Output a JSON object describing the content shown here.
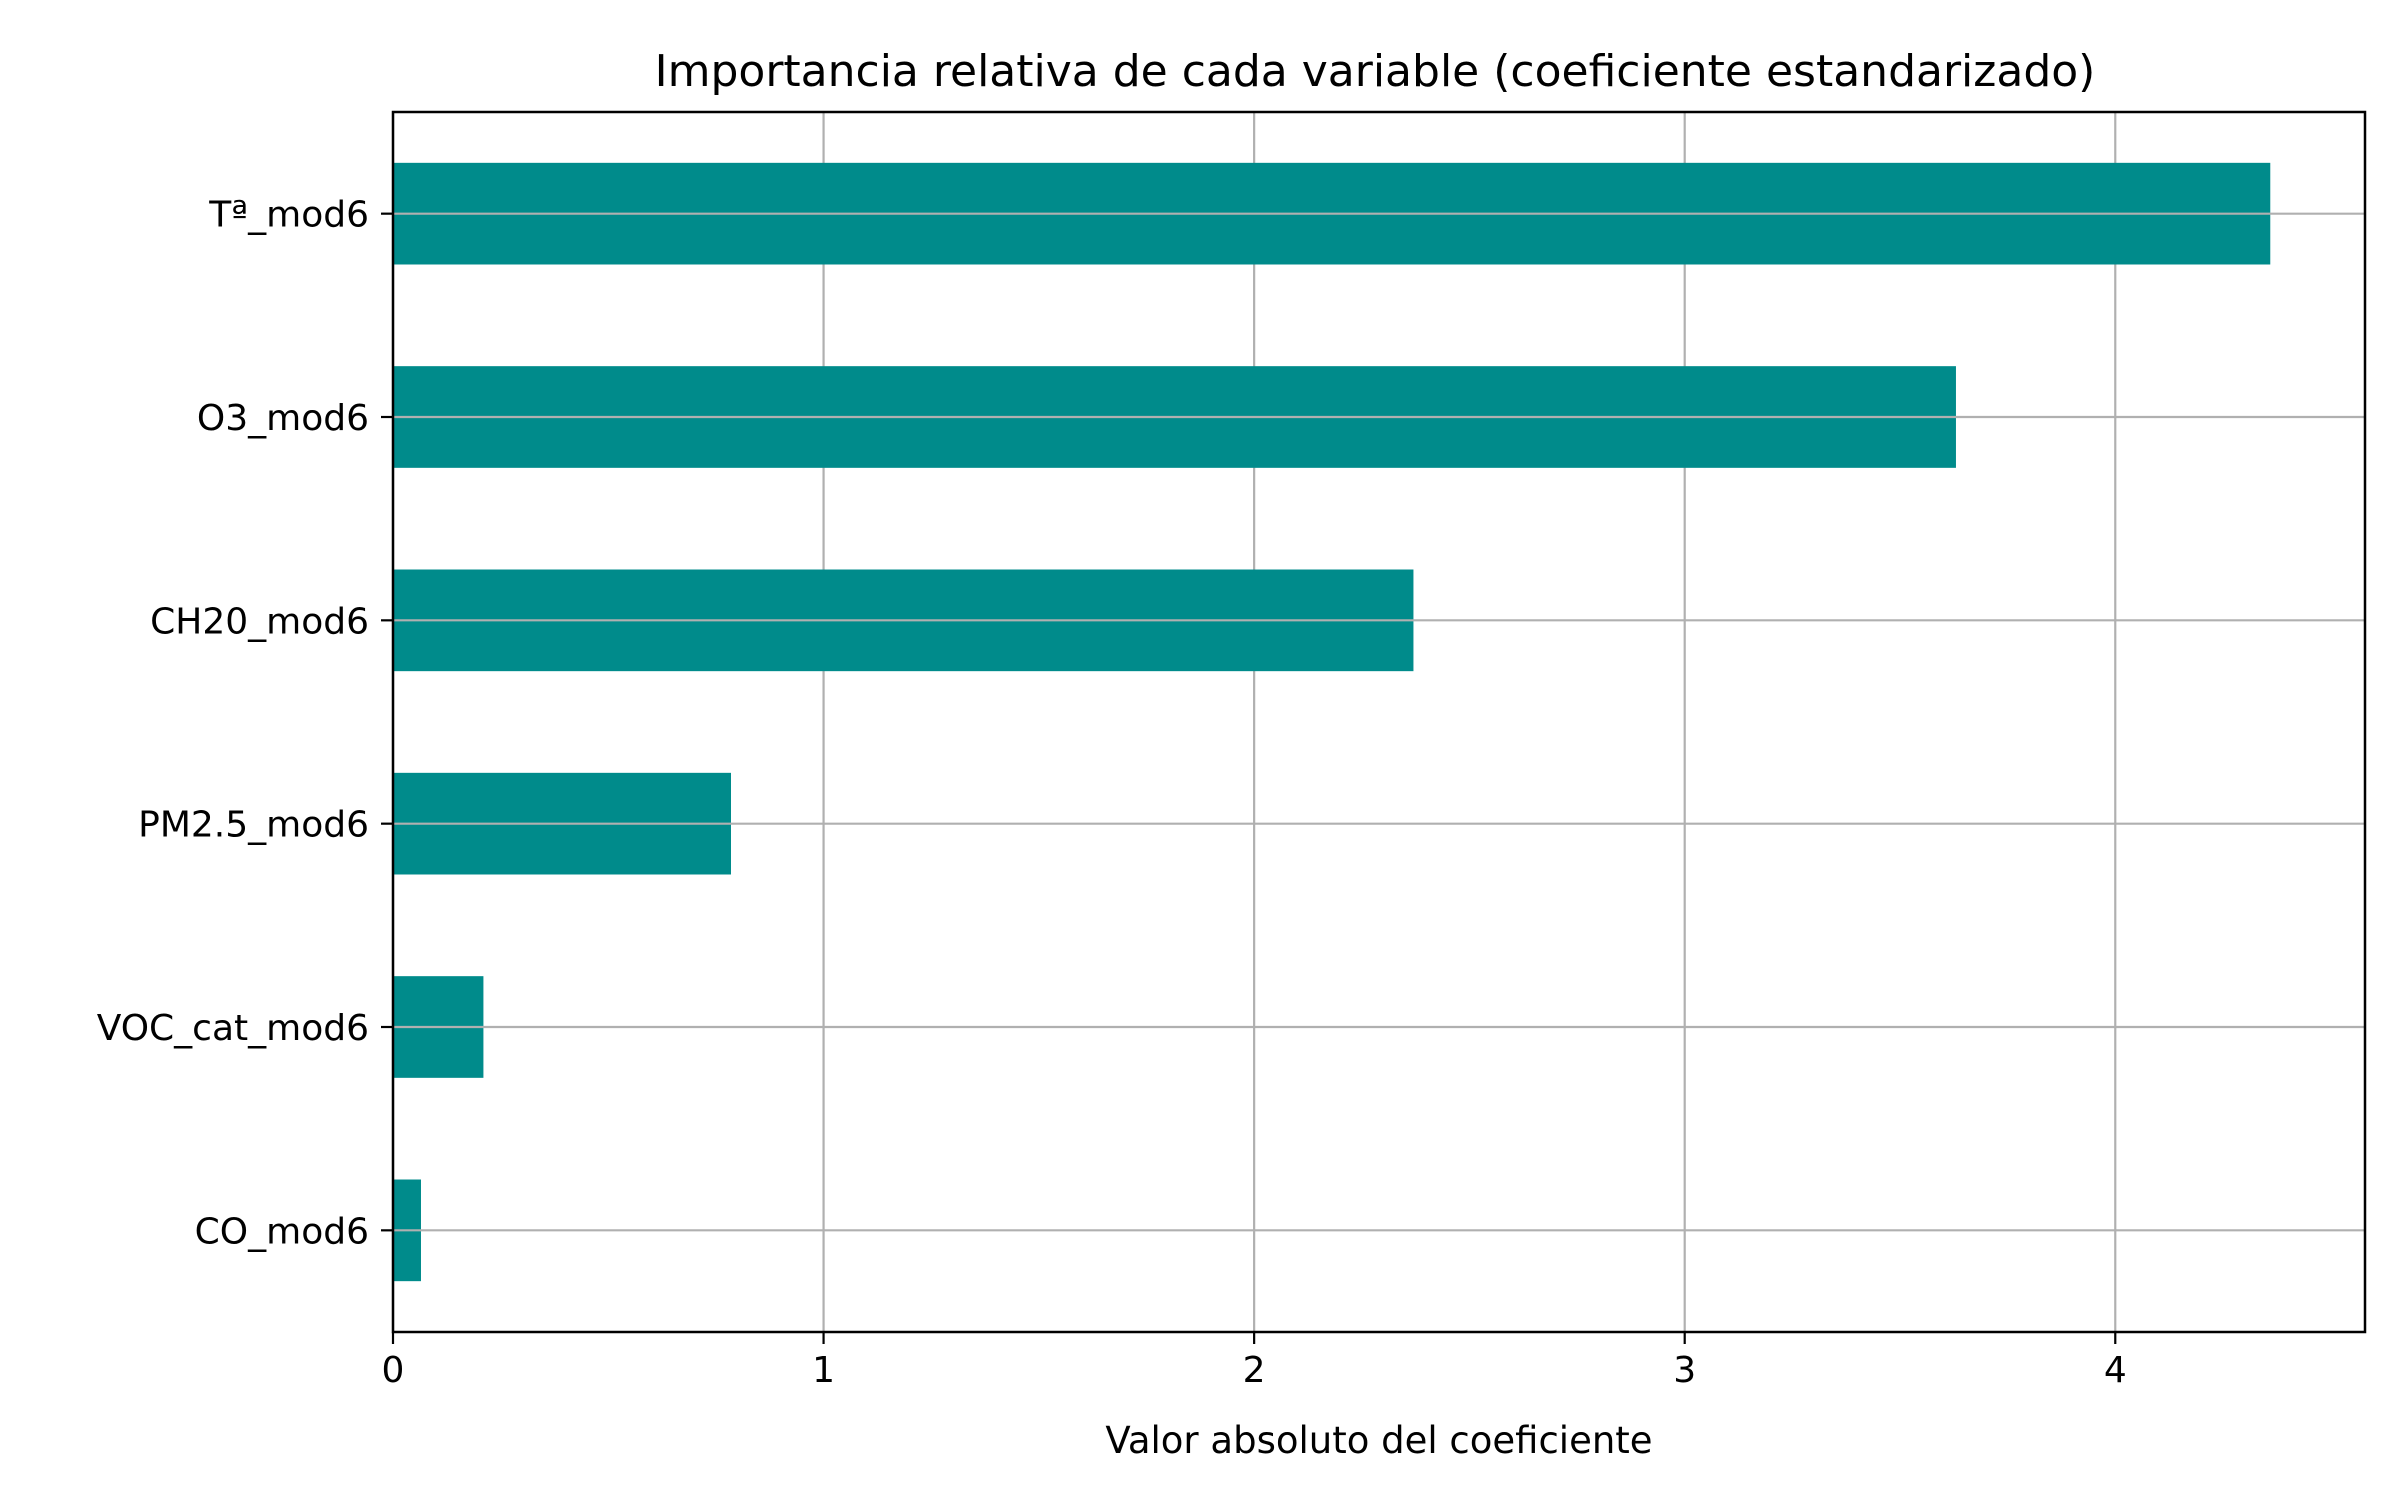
{
  "chart_data": {
    "type": "bar",
    "orientation": "horizontal",
    "title": "Importancia relativa de cada variable (coeficiente estandarizado)",
    "xlabel": "Valor absoluto del coeficiente",
    "ylabel": "",
    "categories": [
      "CO_mod6",
      "VOC_cat_mod6",
      "PM2.5_mod6",
      "CH20_mod6",
      "Tª_mod6",
      "O3_mod6"
    ],
    "bars": [
      {
        "label": "Tª_mod6",
        "value": 4.36
      },
      {
        "label": "O3_mod6",
        "value": 3.63
      },
      {
        "label": "CH20_mod6",
        "value": 2.37
      },
      {
        "label": "PM2.5_mod6",
        "value": 0.785
      },
      {
        "label": "VOC_cat_mod6",
        "value": 0.21
      },
      {
        "label": "CO_mod6",
        "value": 0.065
      }
    ],
    "xticks": [
      "0",
      "1",
      "2",
      "3",
      "4"
    ],
    "xlim": [
      0,
      4.58
    ],
    "grid": true,
    "bar_color": "#008b8b",
    "grid_color": "#b0b0b0"
  }
}
